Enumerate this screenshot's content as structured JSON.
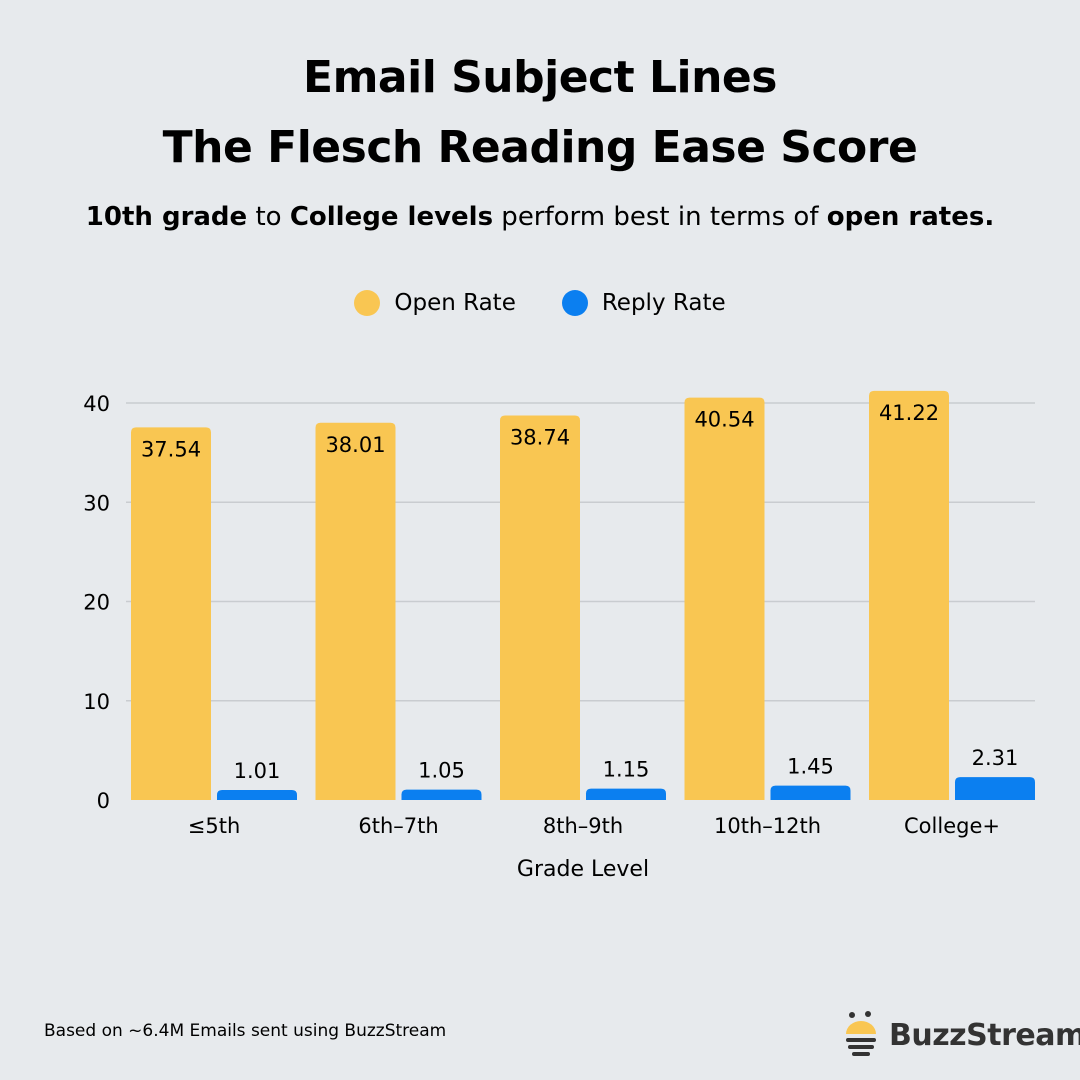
{
  "header": {
    "title_line1": "Email Subject Lines",
    "title_line2": "The Flesch Reading Ease Score",
    "subtitle": {
      "p1": "10th grade",
      "p2": " to ",
      "p3": "College levels",
      "p4": " perform best in terms of ",
      "p5": "open rates."
    }
  },
  "footer": {
    "note": "Based on ~6.4M Emails sent using BuzzStream",
    "brand": "BuzzStream"
  },
  "colors": {
    "open": "#f9c652",
    "reply": "#0b7ff0",
    "background": "#e7eaed"
  },
  "chart_data": {
    "type": "bar",
    "xlabel": "Grade Level",
    "ylabel": "",
    "categories": [
      "≤5th",
      "6th–7th",
      "8th–9th",
      "10th–12th",
      "College+"
    ],
    "series": [
      {
        "name": "Open Rate",
        "values": [
          37.54,
          38.01,
          38.74,
          40.54,
          41.22
        ]
      },
      {
        "name": "Reply Rate",
        "values": [
          1.01,
          1.05,
          1.15,
          1.45,
          2.31
        ]
      }
    ],
    "yticks": [
      0,
      10,
      20,
      30,
      40
    ],
    "ylim": [
      0,
      40
    ],
    "grid": true,
    "legend": "top-center",
    "value_labels": [
      [
        "37.54",
        "38.01",
        "38.74",
        "40.54",
        "41.22"
      ],
      [
        "1.01",
        "1.05",
        "1.15",
        "1.45",
        "2.31"
      ]
    ]
  }
}
